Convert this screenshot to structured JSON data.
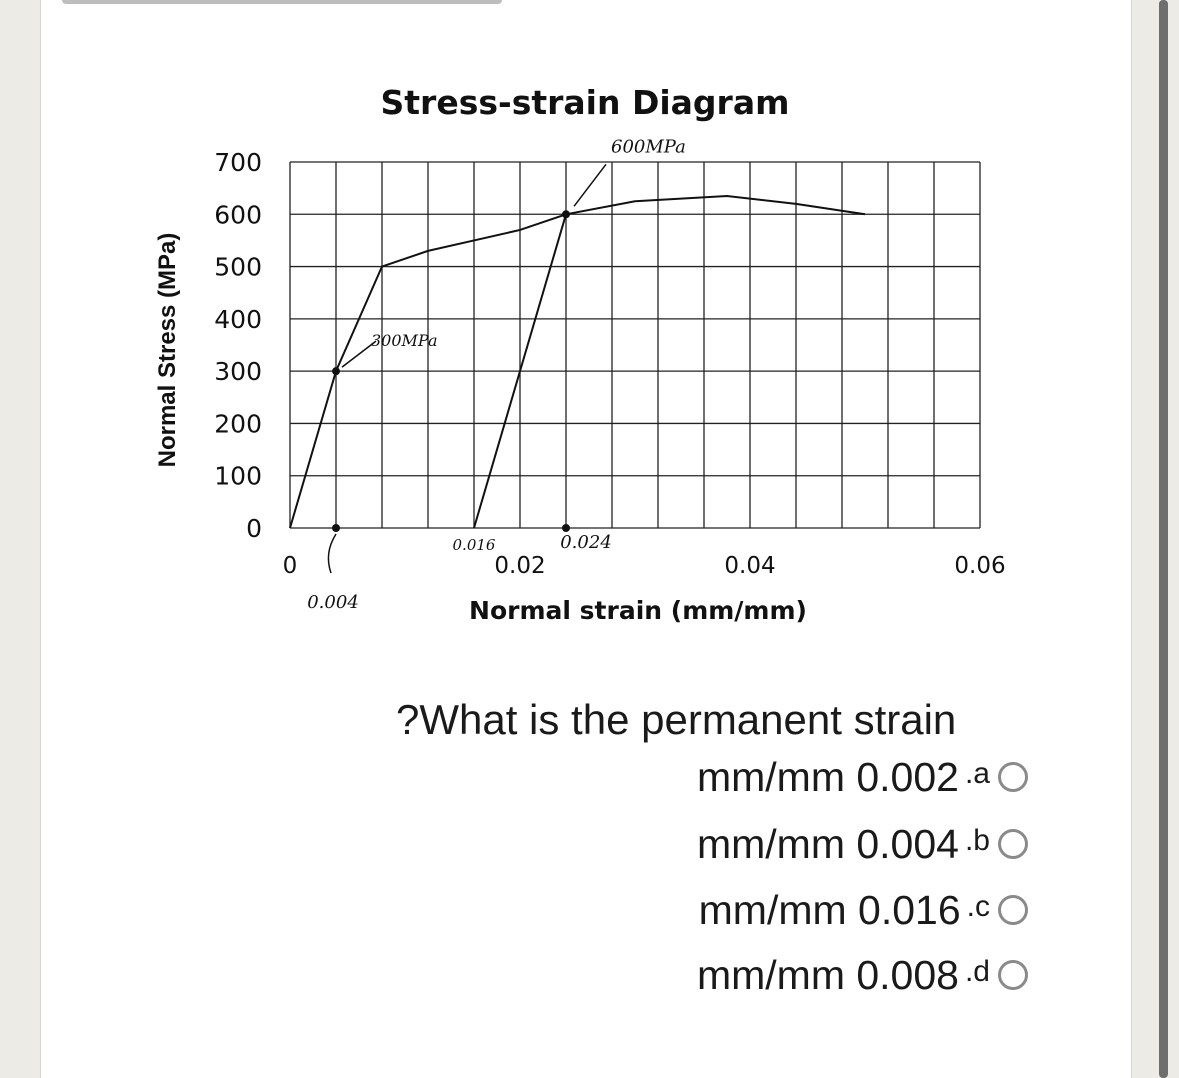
{
  "question": {
    "text": "?What is the permanent strain",
    "options": [
      {
        "value": "mm/mm 0.002",
        "letter": ".a"
      },
      {
        "value": "mm/mm 0.004",
        "letter": ".b"
      },
      {
        "value": "mm/mm 0.016",
        "letter": ".c"
      },
      {
        "value": "mm/mm 0.008",
        "letter": ".d"
      }
    ]
  },
  "chart_data": {
    "type": "line",
    "title": "Stress-strain Diagram",
    "xlabel": "Normal strain (mm/mm)",
    "ylabel": "Normal Stress (MPa)",
    "xlim": [
      0,
      0.06
    ],
    "ylim": [
      0,
      700
    ],
    "x_ticks": [
      "0",
      "0.02",
      "0.04",
      "0.06"
    ],
    "y_ticks": [
      "0",
      "100",
      "200",
      "300",
      "400",
      "500",
      "600",
      "700"
    ],
    "grid": true,
    "series": [
      {
        "x": [
          0,
          0.004,
          0.006,
          0.008,
          0.012,
          0.016,
          0.02,
          0.024,
          0.03,
          0.038,
          0.044,
          0.05
        ],
        "y": [
          0,
          300,
          400,
          500,
          530,
          550,
          570,
          600,
          625,
          635,
          620,
          600
        ]
      },
      {
        "x": [
          0.016,
          0.024
        ],
        "y": [
          0,
          600
        ]
      }
    ],
    "annotations": [
      {
        "text": "600MPa",
        "x": 0.024,
        "y": 600
      },
      {
        "text": "300MPa",
        "x": 0.004,
        "y": 300
      },
      {
        "text": "0.004",
        "x": 0.004,
        "y": 0
      },
      {
        "text": "0.016",
        "x": 0.016,
        "y": 0
      },
      {
        "text": "0.024",
        "x": 0.024,
        "y": 0
      }
    ]
  }
}
